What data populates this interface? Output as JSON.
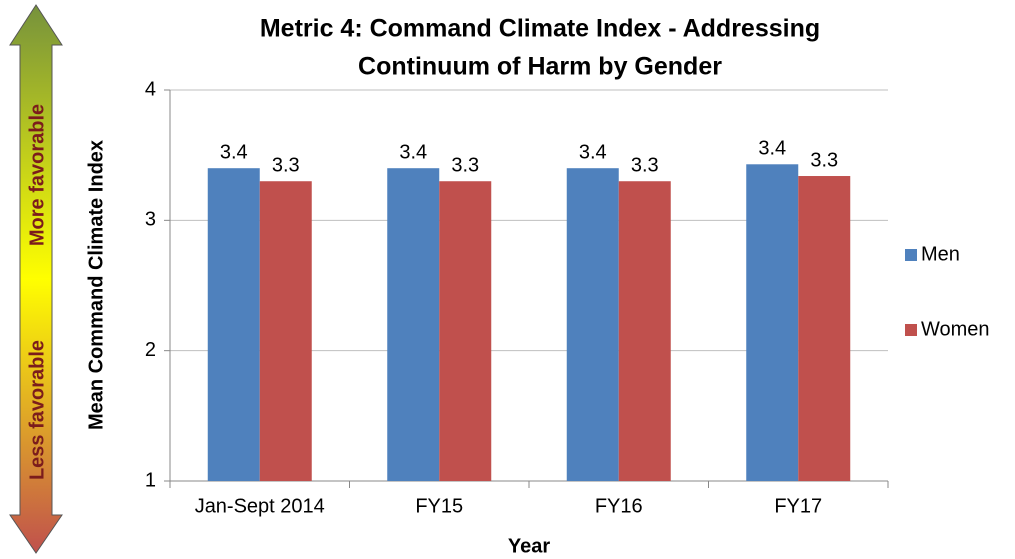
{
  "chart_data": {
    "type": "bar",
    "title": [
      "Metric 4: Command Climate Index - Addressing",
      "Continuum of Harm by Gender"
    ],
    "categories": [
      "Jan-Sept 2014",
      "FY15",
      "FY16",
      "FY17"
    ],
    "series": [
      {
        "name": "Men",
        "color": "#4f81bd",
        "values": [
          3.4,
          3.4,
          3.4,
          3.43
        ],
        "value_labels": [
          "3.4",
          "3.4",
          "3.4",
          "3.4"
        ]
      },
      {
        "name": "Women",
        "color": "#c0504d",
        "values": [
          3.3,
          3.3,
          3.3,
          3.34
        ],
        "value_labels": [
          "3.3",
          "3.3",
          "3.3",
          "3.3"
        ]
      }
    ],
    "xlabel": "Year",
    "ylabel": "Mean Command Climate Index",
    "ylim": [
      1,
      4
    ],
    "yticks": [
      1,
      2,
      3,
      4
    ],
    "grid": true,
    "legend": "right",
    "annotations": [
      "More favorable",
      "Less favorable"
    ]
  }
}
